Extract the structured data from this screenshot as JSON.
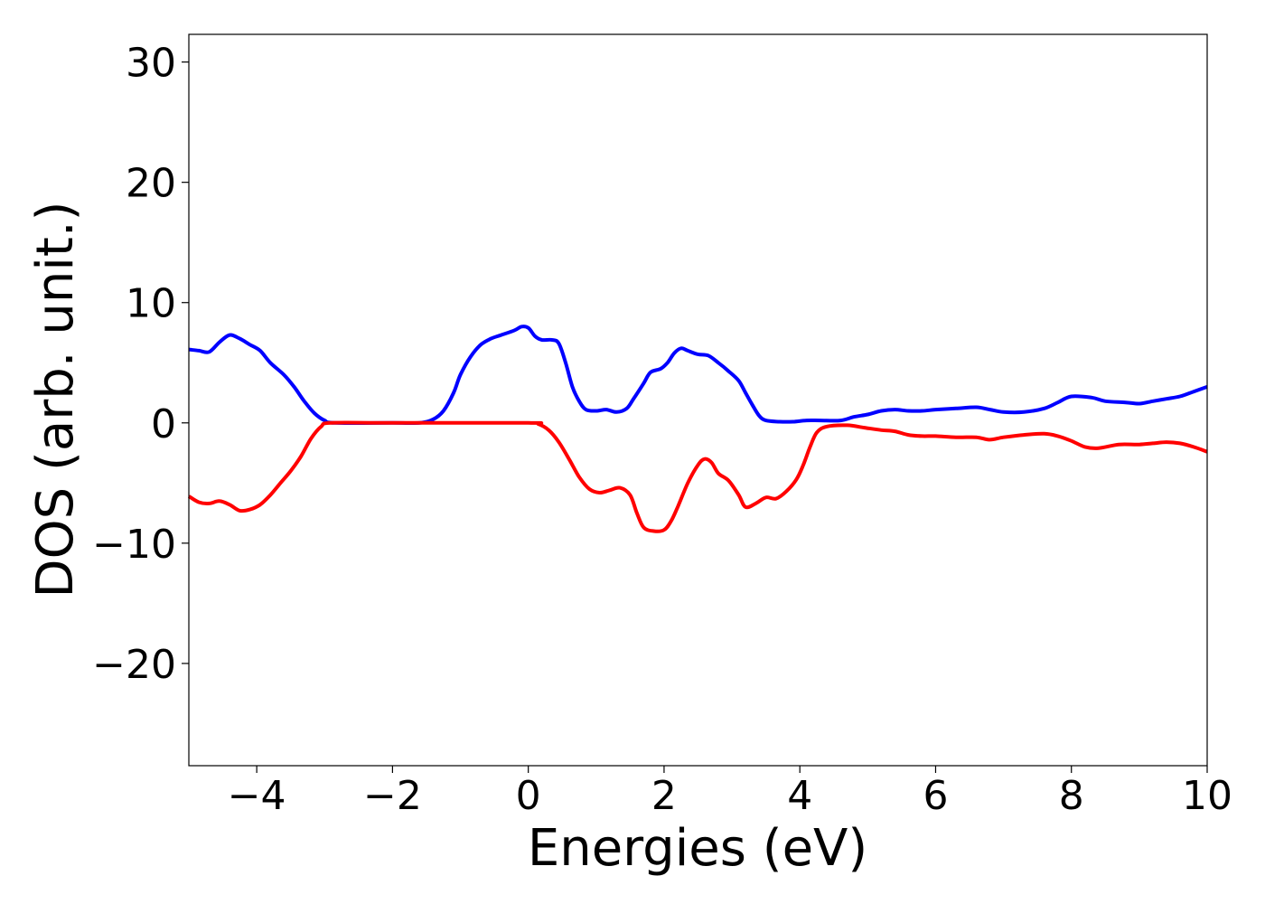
{
  "chart_data": {
    "type": "line",
    "title": "",
    "xlabel": "Energies (eV)",
    "ylabel": "DOS (arb. unit.)",
    "xlim": [
      -5,
      10
    ],
    "ylim": [
      -28.5,
      32.3
    ],
    "grid": false,
    "legend": "none",
    "x_ticks": [
      -4,
      -2,
      0,
      2,
      4,
      6,
      8,
      10
    ],
    "x_tick_labels": [
      "−4",
      "−2",
      "0",
      "2",
      "4",
      "6",
      "8",
      "10"
    ],
    "y_ticks": [
      -20,
      -10,
      0,
      10,
      20,
      30
    ],
    "y_tick_labels": [
      "−20",
      "−10",
      "0",
      "10",
      "20",
      "30"
    ],
    "series": [
      {
        "color": "#0000ff",
        "points": [
          [
            -5.0,
            6.1
          ],
          [
            -4.85,
            6.0
          ],
          [
            -4.7,
            5.9
          ],
          [
            -4.55,
            6.7
          ],
          [
            -4.4,
            7.3
          ],
          [
            -4.25,
            7.0
          ],
          [
            -4.1,
            6.5
          ],
          [
            -3.95,
            6.0
          ],
          [
            -3.8,
            5.0
          ],
          [
            -3.6,
            4.0
          ],
          [
            -3.45,
            3.0
          ],
          [
            -3.3,
            1.8
          ],
          [
            -3.15,
            0.8
          ],
          [
            -3.0,
            0.2
          ],
          [
            -2.85,
            0.0
          ],
          [
            -2.0,
            0.0
          ],
          [
            -1.6,
            0.0
          ],
          [
            -1.4,
            0.3
          ],
          [
            -1.25,
            1.0
          ],
          [
            -1.1,
            2.5
          ],
          [
            -1.0,
            4.0
          ],
          [
            -0.85,
            5.5
          ],
          [
            -0.7,
            6.5
          ],
          [
            -0.55,
            7.0
          ],
          [
            -0.4,
            7.3
          ],
          [
            -0.2,
            7.7
          ],
          [
            -0.1,
            8.0
          ],
          [
            0.0,
            7.9
          ],
          [
            0.1,
            7.2
          ],
          [
            0.2,
            6.9
          ],
          [
            0.35,
            6.9
          ],
          [
            0.45,
            6.6
          ],
          [
            0.55,
            5.0
          ],
          [
            0.65,
            3.0
          ],
          [
            0.75,
            1.8
          ],
          [
            0.85,
            1.1
          ],
          [
            1.0,
            1.0
          ],
          [
            1.15,
            1.1
          ],
          [
            1.3,
            0.9
          ],
          [
            1.45,
            1.2
          ],
          [
            1.55,
            2.0
          ],
          [
            1.7,
            3.3
          ],
          [
            1.8,
            4.2
          ],
          [
            1.95,
            4.5
          ],
          [
            2.05,
            5.0
          ],
          [
            2.15,
            5.8
          ],
          [
            2.25,
            6.2
          ],
          [
            2.35,
            6.0
          ],
          [
            2.5,
            5.7
          ],
          [
            2.65,
            5.6
          ],
          [
            2.8,
            5.0
          ],
          [
            2.95,
            4.3
          ],
          [
            3.1,
            3.5
          ],
          [
            3.2,
            2.5
          ],
          [
            3.3,
            1.5
          ],
          [
            3.4,
            0.6
          ],
          [
            3.5,
            0.2
          ],
          [
            3.7,
            0.1
          ],
          [
            3.9,
            0.1
          ],
          [
            4.1,
            0.2
          ],
          [
            4.3,
            0.2
          ],
          [
            4.6,
            0.2
          ],
          [
            4.8,
            0.5
          ],
          [
            5.0,
            0.7
          ],
          [
            5.2,
            1.0
          ],
          [
            5.4,
            1.1
          ],
          [
            5.6,
            1.0
          ],
          [
            5.8,
            1.0
          ],
          [
            6.0,
            1.1
          ],
          [
            6.3,
            1.2
          ],
          [
            6.6,
            1.3
          ],
          [
            6.8,
            1.1
          ],
          [
            7.0,
            0.9
          ],
          [
            7.3,
            0.9
          ],
          [
            7.6,
            1.2
          ],
          [
            7.8,
            1.7
          ],
          [
            8.0,
            2.2
          ],
          [
            8.3,
            2.1
          ],
          [
            8.5,
            1.8
          ],
          [
            8.8,
            1.7
          ],
          [
            9.0,
            1.6
          ],
          [
            9.2,
            1.8
          ],
          [
            9.4,
            2.0
          ],
          [
            9.6,
            2.2
          ],
          [
            9.8,
            2.6
          ],
          [
            10.0,
            3.0
          ]
        ]
      },
      {
        "color": "#ff0000",
        "points": [
          [
            -5.0,
            -6.1
          ],
          [
            -4.85,
            -6.6
          ],
          [
            -4.7,
            -6.7
          ],
          [
            -4.55,
            -6.5
          ],
          [
            -4.4,
            -6.8
          ],
          [
            -4.25,
            -7.3
          ],
          [
            -4.1,
            -7.2
          ],
          [
            -3.95,
            -6.8
          ],
          [
            -3.8,
            -6.0
          ],
          [
            -3.65,
            -5.0
          ],
          [
            -3.5,
            -4.0
          ],
          [
            -3.35,
            -2.8
          ],
          [
            -3.2,
            -1.3
          ],
          [
            -3.05,
            -0.3
          ],
          [
            -2.9,
            0.0
          ],
          [
            -2.0,
            0.0
          ],
          [
            0.0,
            0.0
          ],
          [
            0.15,
            -0.1
          ],
          [
            0.3,
            -0.6
          ],
          [
            0.45,
            -1.6
          ],
          [
            0.6,
            -3.0
          ],
          [
            0.75,
            -4.5
          ],
          [
            0.9,
            -5.5
          ],
          [
            1.05,
            -5.8
          ],
          [
            1.2,
            -5.6
          ],
          [
            1.35,
            -5.4
          ],
          [
            1.5,
            -6.0
          ],
          [
            1.6,
            -7.5
          ],
          [
            1.7,
            -8.7
          ],
          [
            1.85,
            -9.0
          ],
          [
            2.0,
            -8.9
          ],
          [
            2.1,
            -8.2
          ],
          [
            2.2,
            -7.0
          ],
          [
            2.35,
            -5.0
          ],
          [
            2.5,
            -3.5
          ],
          [
            2.6,
            -3.0
          ],
          [
            2.7,
            -3.3
          ],
          [
            2.8,
            -4.2
          ],
          [
            2.95,
            -4.8
          ],
          [
            3.1,
            -6.0
          ],
          [
            3.2,
            -7.0
          ],
          [
            3.35,
            -6.7
          ],
          [
            3.5,
            -6.2
          ],
          [
            3.65,
            -6.3
          ],
          [
            3.8,
            -5.7
          ],
          [
            3.95,
            -4.7
          ],
          [
            4.05,
            -3.5
          ],
          [
            4.15,
            -2.0
          ],
          [
            4.25,
            -0.8
          ],
          [
            4.4,
            -0.3
          ],
          [
            4.7,
            -0.2
          ],
          [
            4.95,
            -0.4
          ],
          [
            5.2,
            -0.6
          ],
          [
            5.4,
            -0.7
          ],
          [
            5.6,
            -1.0
          ],
          [
            5.8,
            -1.1
          ],
          [
            6.0,
            -1.1
          ],
          [
            6.3,
            -1.2
          ],
          [
            6.6,
            -1.2
          ],
          [
            6.8,
            -1.4
          ],
          [
            7.0,
            -1.2
          ],
          [
            7.3,
            -1.0
          ],
          [
            7.6,
            -0.9
          ],
          [
            7.8,
            -1.1
          ],
          [
            8.0,
            -1.5
          ],
          [
            8.2,
            -2.0
          ],
          [
            8.4,
            -2.1
          ],
          [
            8.7,
            -1.8
          ],
          [
            9.0,
            -1.8
          ],
          [
            9.2,
            -1.7
          ],
          [
            9.4,
            -1.6
          ],
          [
            9.6,
            -1.7
          ],
          [
            9.8,
            -2.0
          ],
          [
            10.0,
            -2.4
          ]
        ]
      }
    ]
  }
}
